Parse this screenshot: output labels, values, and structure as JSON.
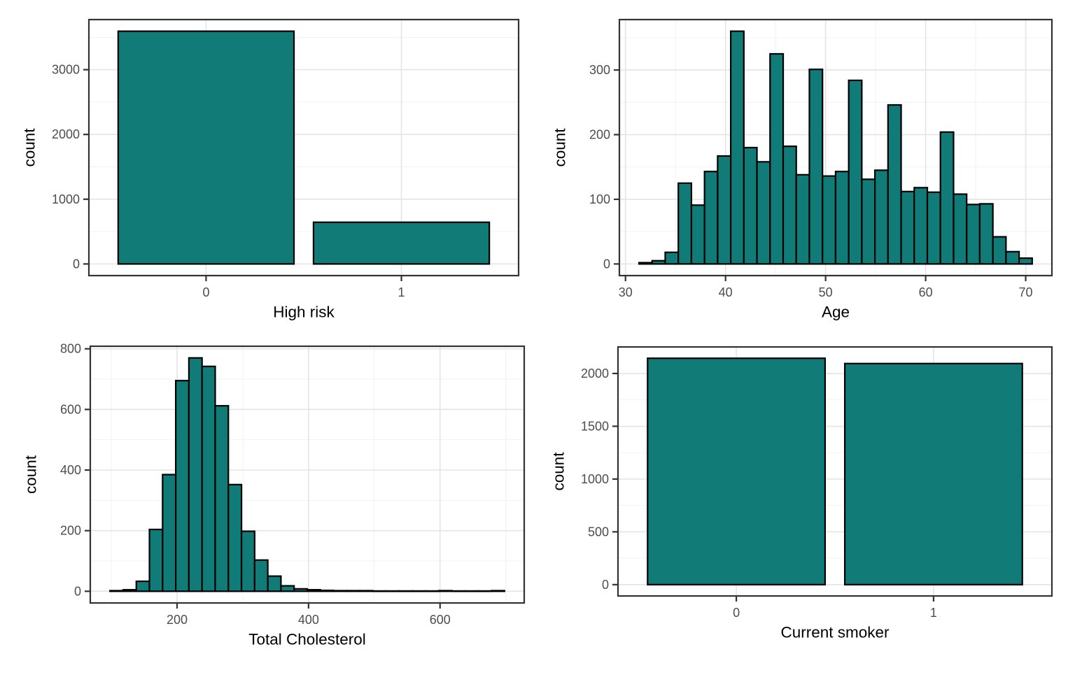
{
  "figure": {
    "title": "",
    "background": "#ffffff",
    "bar_fill": "#117b78",
    "bar_stroke": "#000000",
    "panel_border": "#333333",
    "grid_major": "#e4e4e4",
    "grid_minor": "#f2f2f2",
    "tick_color": "#333333",
    "tick_label_color": "#4d4d4d",
    "axis_title_color": "#000000"
  },
  "chart_data": [
    {
      "id": "high-risk",
      "type": "bar",
      "title": "",
      "xlabel": "High risk",
      "ylabel": "count",
      "categories": [
        "0",
        "1"
      ],
      "values": [
        3594,
        644
      ],
      "y_ticks": [
        0,
        1000,
        2000,
        3000
      ],
      "y_minor_ticks": [
        500,
        1500,
        2500,
        3500
      ],
      "ylim": [
        -179.7,
        3773.7
      ],
      "grid": "on",
      "legend": "none"
    },
    {
      "id": "age",
      "type": "histogram",
      "title": "",
      "xlabel": "Age",
      "ylabel": "count",
      "bin_start": 31.35,
      "bin_width": 1.31,
      "values": [
        2,
        5,
        18,
        125,
        91,
        143,
        167,
        360,
        180,
        158,
        325,
        182,
        138,
        301,
        136,
        143,
        284,
        131,
        145,
        246,
        112,
        118,
        111,
        204,
        108,
        92,
        93,
        42,
        19,
        9
      ],
      "x_ticks": [
        30,
        40,
        50,
        60,
        70
      ],
      "x_minor_ticks": [
        35,
        45,
        55,
        65
      ],
      "y_ticks": [
        0,
        100,
        200,
        300
      ],
      "y_minor_ticks": [
        50,
        150,
        250,
        350
      ],
      "xlim": [
        29.39,
        72.62
      ],
      "ylim": [
        -18,
        378
      ],
      "grid": "on",
      "legend": "none"
    },
    {
      "id": "total-cholesterol",
      "type": "histogram",
      "title": "",
      "xlabel": "Total Cholesterol",
      "ylabel": "count",
      "bin_start": 98,
      "bin_width": 20,
      "values": [
        2,
        5,
        33,
        204,
        385,
        695,
        770,
        742,
        612,
        352,
        198,
        103,
        50,
        18,
        8,
        5,
        3,
        2,
        2,
        2,
        1,
        1,
        1,
        1,
        1,
        2,
        1,
        1,
        1,
        2
      ],
      "x_ticks": [
        200,
        400,
        600
      ],
      "x_minor_ticks": [
        100,
        300,
        500,
        700
      ],
      "y_ticks": [
        0,
        200,
        400,
        600,
        800
      ],
      "y_minor_ticks": [
        100,
        300,
        500,
        700
      ],
      "xlim": [
        68,
        728
      ],
      "ylim": [
        -38.5,
        808.5
      ],
      "grid": "on",
      "legend": "none"
    },
    {
      "id": "current-smoker",
      "type": "bar",
      "title": "",
      "xlabel": "Current smoker",
      "ylabel": "count",
      "categories": [
        "0",
        "1"
      ],
      "values": [
        2144,
        2094
      ],
      "y_ticks": [
        0,
        500,
        1000,
        1500,
        2000
      ],
      "y_minor_ticks": [
        250,
        750,
        1250,
        1750
      ],
      "ylim": [
        -107.2,
        2251.2
      ],
      "grid": "on",
      "legend": "none"
    }
  ]
}
